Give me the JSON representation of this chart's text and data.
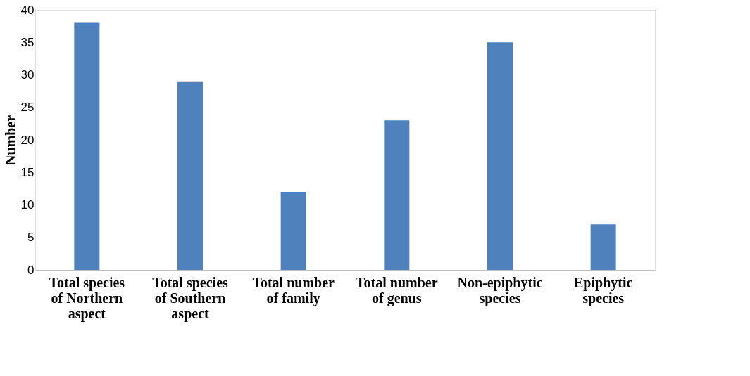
{
  "chart_data": {
    "type": "bar",
    "ylabel": "Number",
    "categories": [
      "Total species of Northern aspect",
      "Total species of Southern aspect",
      "Total number of family",
      "Total number of genus",
      "Non-epiphytic species",
      "Epiphytic species"
    ],
    "values": [
      38,
      29,
      12,
      23,
      35,
      7
    ],
    "color": "#4f81bd",
    "ylim": [
      0,
      40
    ],
    "yticks": [
      0,
      5,
      10,
      15,
      20,
      25,
      30,
      35,
      40
    ],
    "grid": false
  }
}
